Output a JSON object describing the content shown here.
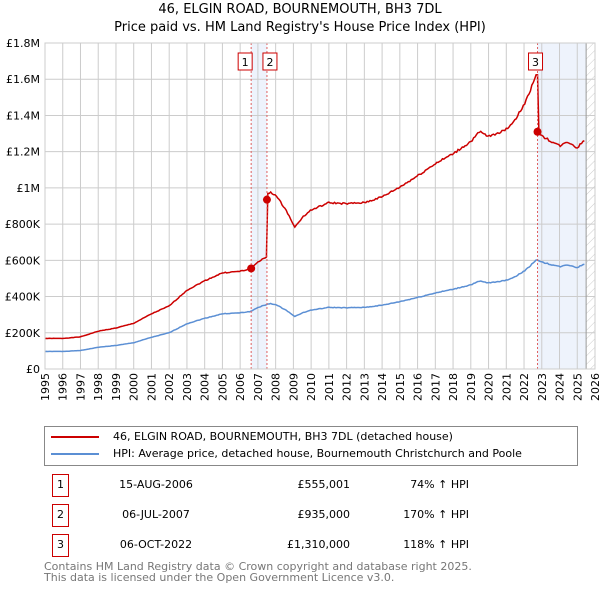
{
  "title_line1": "46, ELGIN ROAD, BOURNEMOUTH, BH3 7DL",
  "title_line2": "Price paid vs. HM Land Registry's House Price Index (HPI)",
  "colors": {
    "property": "#cc0000",
    "hpi": "#5b8fd4",
    "shade": "#eef3fc"
  },
  "chart_data": {
    "type": "line",
    "title": "46, ELGIN ROAD, BOURNEMOUTH, BH3 7DL — Price paid vs. HPI",
    "xlim": [
      1995,
      2026
    ],
    "ylim": [
      0,
      1800000
    ],
    "grid": true,
    "x_ticks": [
      "1995",
      "1996",
      "1997",
      "1998",
      "1999",
      "2000",
      "2001",
      "2002",
      "2003",
      "2004",
      "2005",
      "2006",
      "2007",
      "2008",
      "2009",
      "2010",
      "2011",
      "2012",
      "2013",
      "2014",
      "2015",
      "2016",
      "2017",
      "2018",
      "2019",
      "2020",
      "2021",
      "2022",
      "2023",
      "2024",
      "2025",
      "2026"
    ],
    "y_ticks": [
      {
        "v": 0,
        "l": "£0"
      },
      {
        "v": 200000,
        "l": "£200K"
      },
      {
        "v": 400000,
        "l": "£400K"
      },
      {
        "v": 600000,
        "l": "£600K"
      },
      {
        "v": 800000,
        "l": "£800K"
      },
      {
        "v": 1000000,
        "l": "£1M"
      },
      {
        "v": 1200000,
        "l": "£1.2M"
      },
      {
        "v": 1400000,
        "l": "£1.4M"
      },
      {
        "v": 1600000,
        "l": "£1.6M"
      },
      {
        "v": 1800000,
        "l": "£1.8M"
      }
    ],
    "hpi_series": {
      "name": "HPI: Average price, detached house, Bournemouth Christchurch and Poole",
      "x": [
        1995,
        1996,
        1997,
        1998,
        1999,
        2000,
        2001,
        2002,
        2003,
        2004,
        2005,
        2006,
        2006.6,
        2007,
        2007.7,
        2008,
        2008.5,
        2009.1,
        2009.5,
        2010,
        2011,
        2012,
        2013,
        2014,
        2015,
        2016,
        2017,
        2018,
        2019,
        2019.5,
        2020,
        2021,
        2021.5,
        2022,
        2022.75,
        2023,
        2024,
        2024.5,
        2025,
        2025.4
      ],
      "y": [
        97000,
        97000,
        102000,
        120000,
        130000,
        145000,
        175000,
        200000,
        250000,
        280000,
        305000,
        310000,
        318000,
        340000,
        362000,
        355000,
        330000,
        290000,
        310000,
        325000,
        340000,
        338000,
        340000,
        352000,
        372000,
        395000,
        420000,
        440000,
        465000,
        485000,
        475000,
        490000,
        510000,
        540000,
        605000,
        590000,
        565000,
        575000,
        560000,
        580000
      ]
    },
    "property_series": {
      "name": "46, ELGIN ROAD, BOURNEMOUTH, BH3 7DL (detached house)",
      "ratios": [
        1.74,
        1.74,
        2.7,
        2.18
      ]
    },
    "sales": [
      {
        "n": "1",
        "x": 2006.62,
        "date": "15-AUG-2006",
        "price": 555001,
        "price_label": "£555,001",
        "hpi": "74% ↑ HPI"
      },
      {
        "n": "2",
        "x": 2007.51,
        "date": "06-JUL-2007",
        "price": 935000,
        "price_label": "£935,000",
        "hpi": "170% ↑ HPI"
      },
      {
        "n": "3",
        "x": 2022.76,
        "date": "06-OCT-2022",
        "price": 1310000,
        "price_label": "£1,310,000",
        "hpi": "118% ↑ HPI"
      }
    ],
    "data_end": 2025.5
  },
  "legend": {
    "property": "46, ELGIN ROAD, BOURNEMOUTH, BH3 7DL (detached house)",
    "hpi": "HPI: Average price, detached house, Bournemouth Christchurch and Poole"
  },
  "footer": {
    "line1": "Contains HM Land Registry data © Crown copyright and database right 2025.",
    "line2": "This data is licensed under the Open Government Licence v3.0."
  }
}
